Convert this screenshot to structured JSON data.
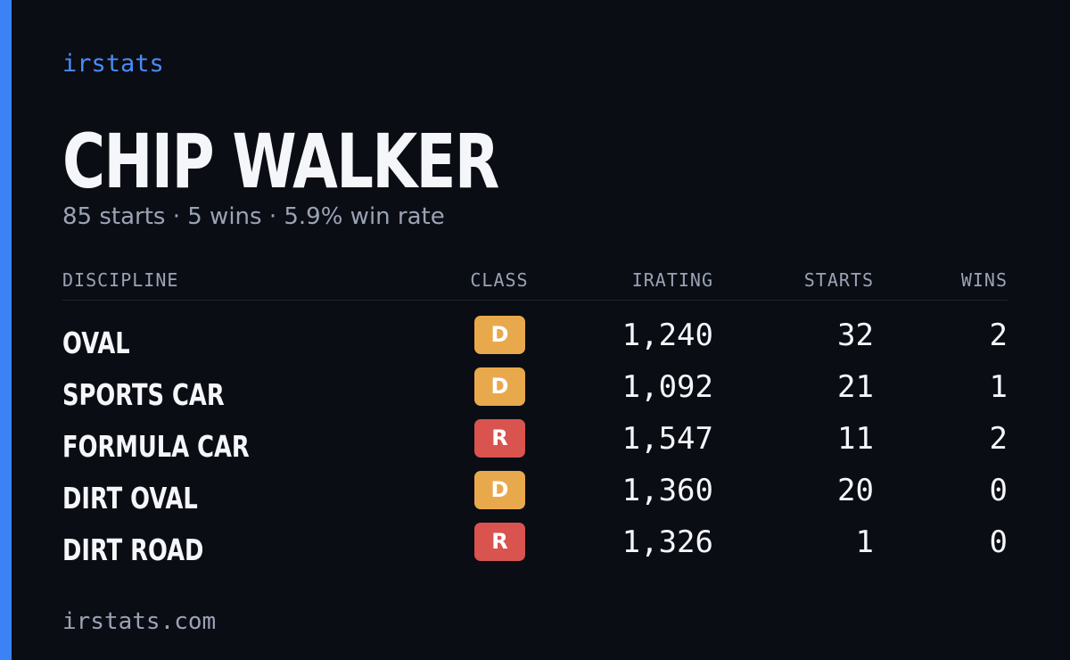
{
  "brand": "irstats",
  "driver": {
    "name": "CHIP WALKER",
    "summary": "85 starts · 5 wins · 5.9% win rate"
  },
  "table": {
    "headers": [
      "DISCIPLINE",
      "CLASS",
      "IRATING",
      "STARTS",
      "WINS"
    ],
    "rows": [
      [
        "OVAL",
        "D",
        "1,240",
        "32",
        "2"
      ],
      [
        "SPORTS CAR",
        "D",
        "1,092",
        "21",
        "1"
      ],
      [
        "FORMULA CAR",
        "R",
        "1,547",
        "11",
        "2"
      ],
      [
        "DIRT OVAL",
        "D",
        "1,360",
        "20",
        "0"
      ],
      [
        "DIRT ROAD",
        "R",
        "1,326",
        "1",
        "0"
      ]
    ]
  },
  "footer": "irstats.com"
}
